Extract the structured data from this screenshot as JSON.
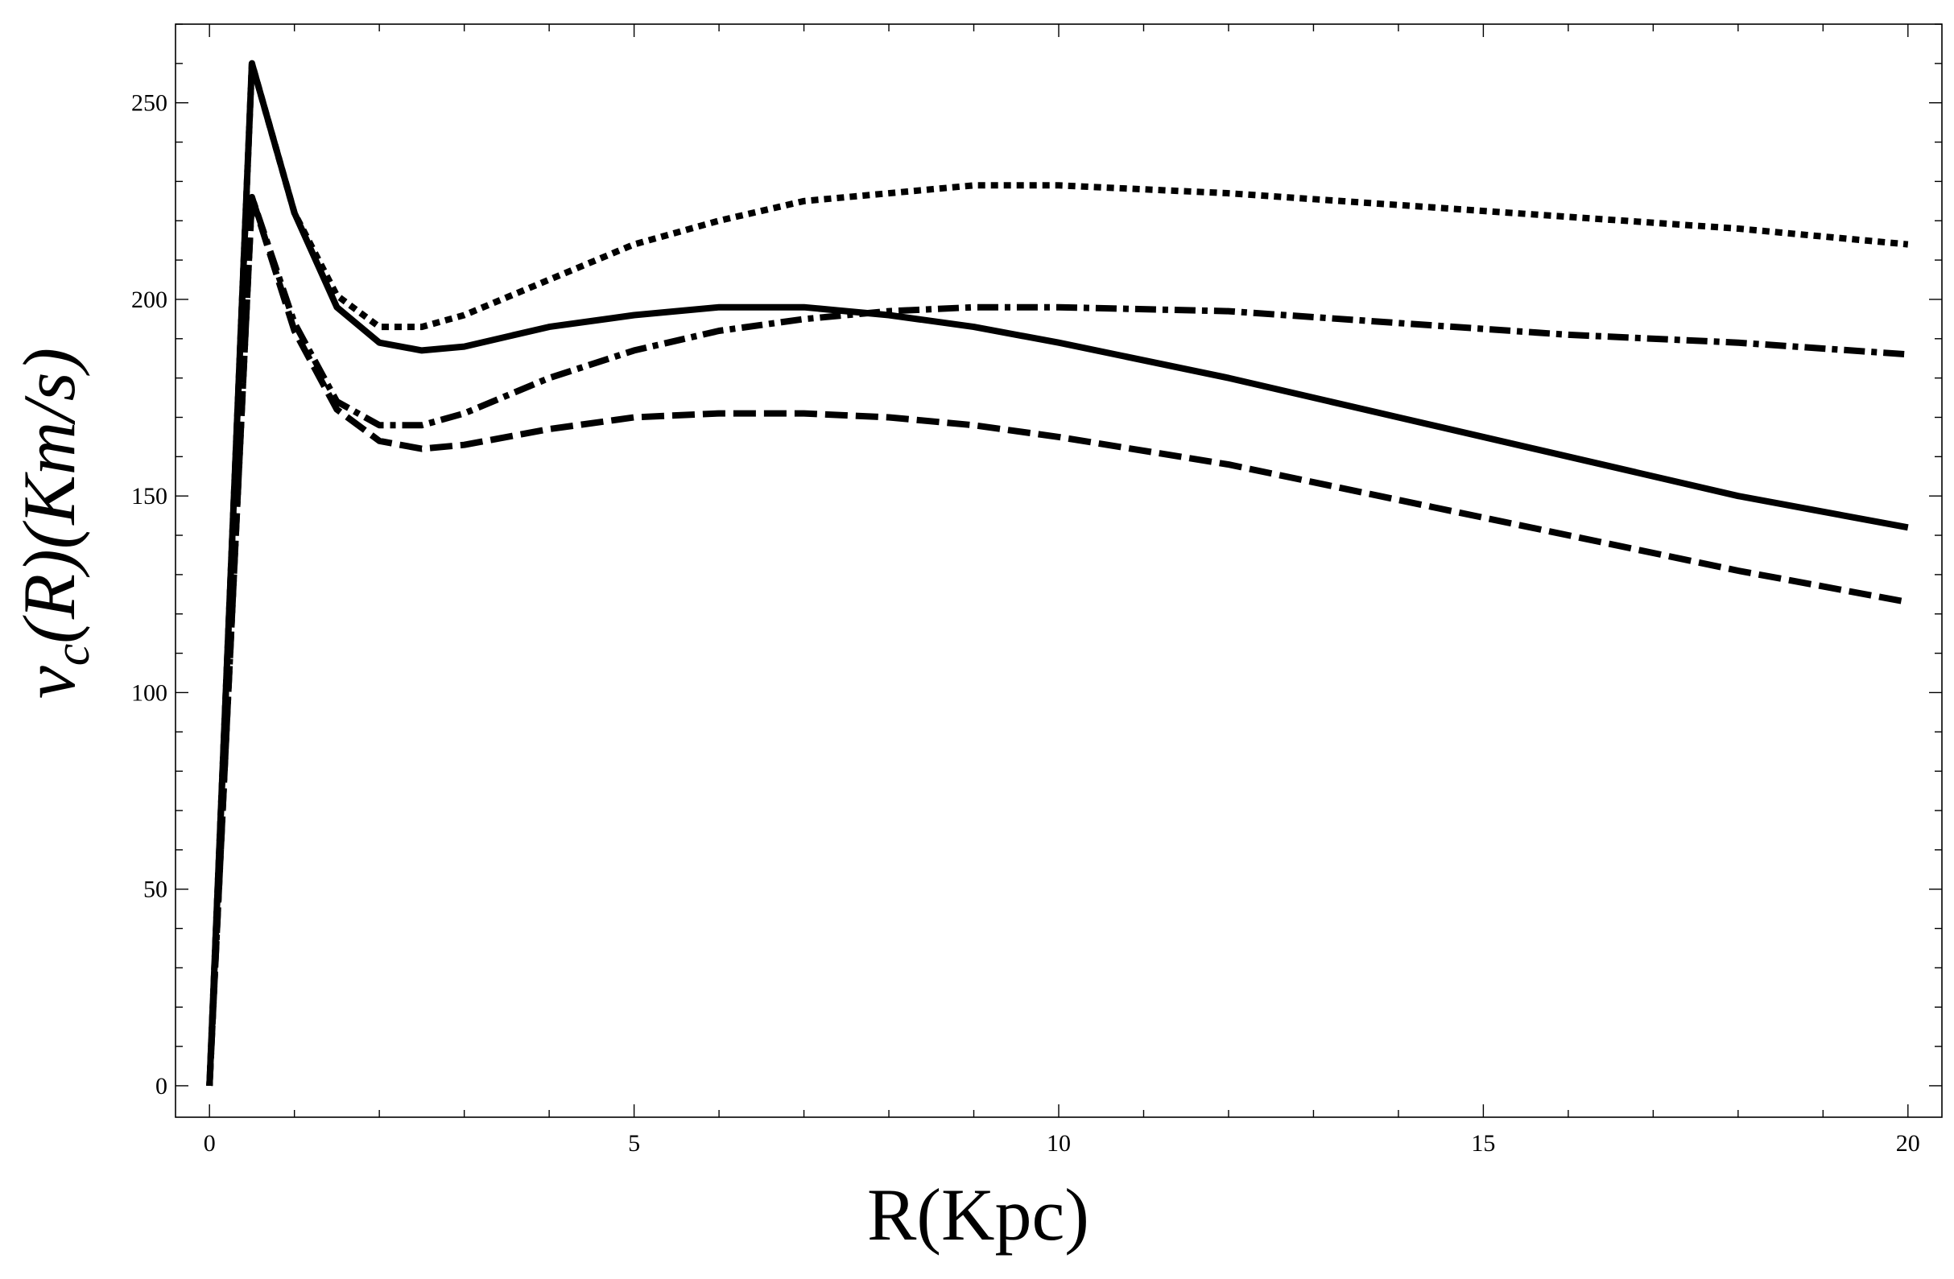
{
  "chart_data": {
    "type": "line",
    "title": "",
    "xlabel": "R(Kpc)",
    "ylabel": {
      "v": "v",
      "sub": "c",
      "rest": "(R)(Km/s)"
    },
    "xlim": [
      -0.4,
      20.4
    ],
    "ylim": [
      -8,
      270
    ],
    "x_ticks": [
      0,
      5,
      10,
      15,
      20
    ],
    "y_ticks": [
      0,
      50,
      100,
      150,
      200,
      250
    ],
    "x_minor_step": 1,
    "y_minor_step": 10,
    "grid": false,
    "legend": "none",
    "series": [
      {
        "style": "solid",
        "x": [
          0,
          0.5,
          1,
          1.5,
          2,
          2.5,
          3,
          4,
          5,
          6,
          7,
          8,
          9,
          10,
          12,
          14,
          16,
          18,
          20
        ],
        "y": [
          0,
          260,
          222,
          198,
          189,
          187,
          188,
          193,
          196,
          198,
          198,
          196,
          193,
          189,
          180,
          170,
          160,
          150,
          142
        ]
      },
      {
        "style": "dashed",
        "x": [
          0,
          0.5,
          1,
          1.5,
          2,
          2.5,
          3,
          4,
          5,
          6,
          7,
          8,
          9,
          10,
          12,
          14,
          16,
          18,
          20
        ],
        "y": [
          0,
          226,
          192,
          172,
          164,
          162,
          163,
          167,
          170,
          171,
          171,
          170,
          168,
          165,
          158,
          149,
          140,
          131,
          123
        ]
      },
      {
        "style": "dotted",
        "x": [
          0,
          0.5,
          1,
          1.5,
          2,
          2.5,
          3,
          4,
          5,
          6,
          7,
          8,
          9,
          10,
          12,
          14,
          16,
          18,
          20
        ],
        "y": [
          0,
          260,
          222,
          201,
          193,
          193,
          196,
          205,
          214,
          220,
          225,
          227,
          229,
          229,
          227,
          224,
          221,
          218,
          214
        ]
      },
      {
        "style": "dashdot",
        "x": [
          0,
          0.5,
          1,
          1.5,
          2,
          2.5,
          3,
          4,
          5,
          6,
          7,
          8,
          9,
          10,
          12,
          14,
          16,
          18,
          20
        ],
        "y": [
          0,
          226,
          194,
          174,
          168,
          168,
          171,
          180,
          187,
          192,
          195,
          197,
          198,
          198,
          197,
          194,
          191,
          189,
          186
        ]
      }
    ]
  }
}
